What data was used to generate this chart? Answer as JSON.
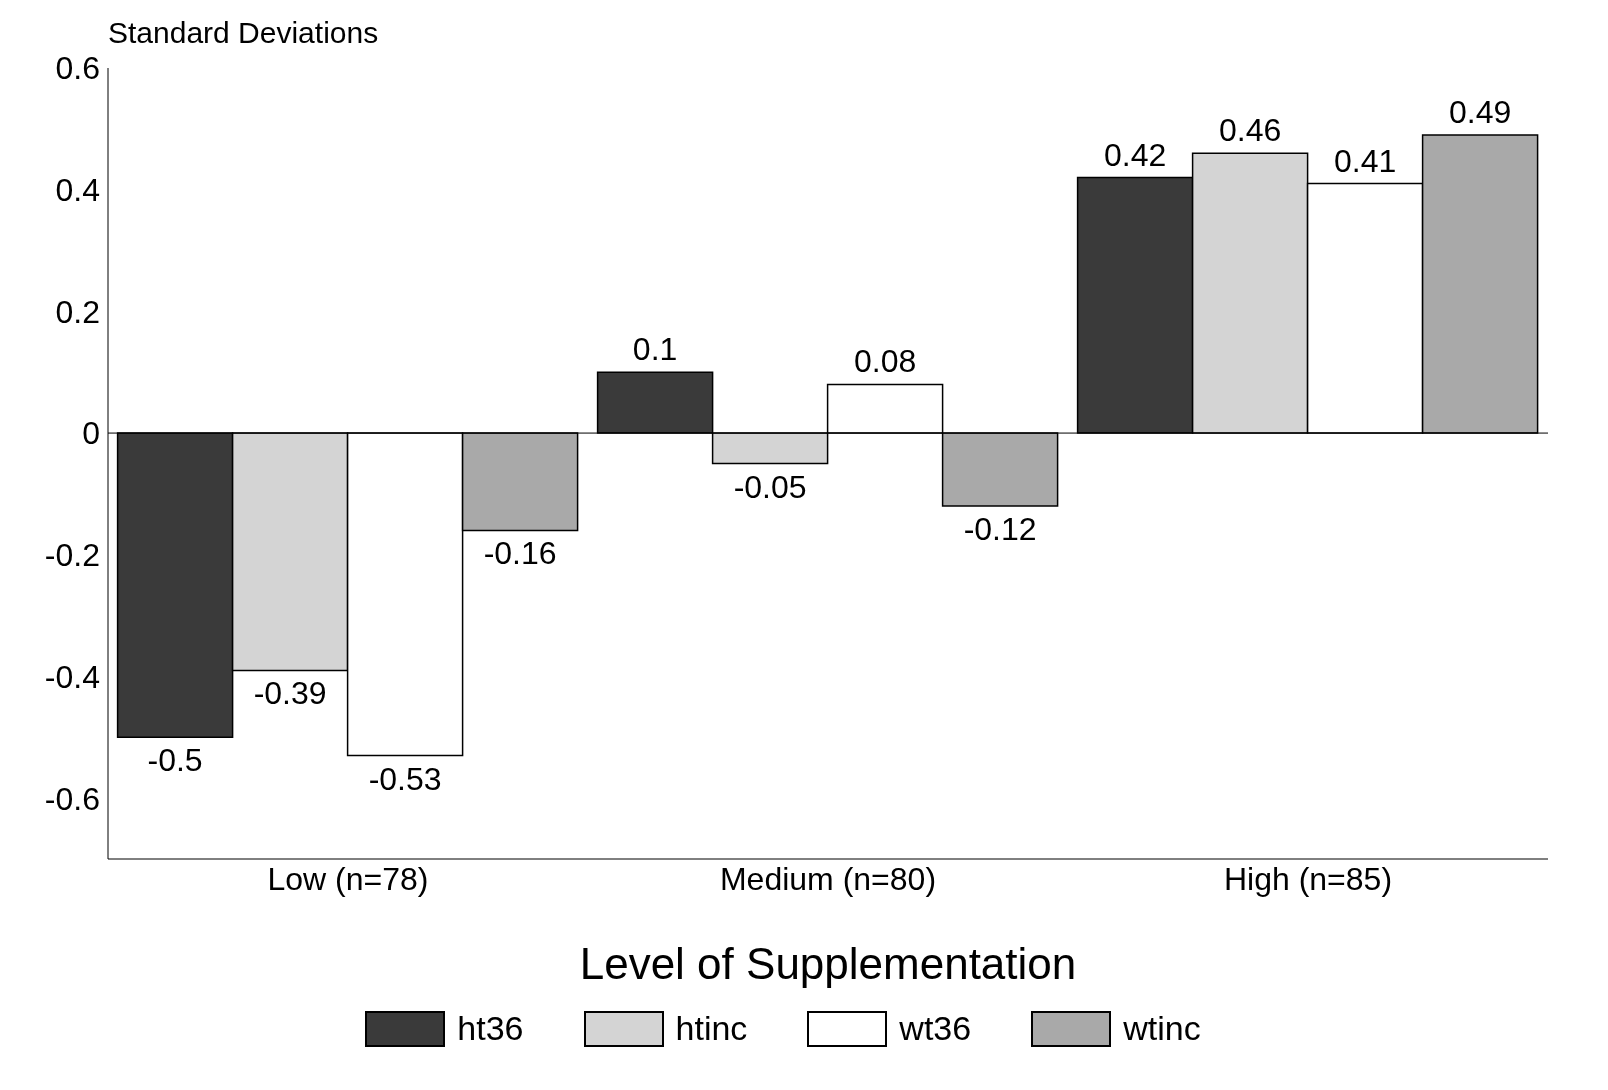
{
  "chart_data": {
    "type": "bar",
    "ylabel": "Standard Deviations",
    "xlabel": "Level of Supplementation",
    "categories": [
      "Low (n=78)",
      "Medium (n=80)",
      "High (n=85)"
    ],
    "series": [
      {
        "name": "ht36",
        "color": "#3a3a3a",
        "values": [
          -0.5,
          0.1,
          0.42
        ]
      },
      {
        "name": "htinc",
        "color": "#d4d4d4",
        "values": [
          -0.39,
          -0.05,
          0.46
        ]
      },
      {
        "name": "wt36",
        "color": "#ffffff",
        "values": [
          -0.53,
          0.08,
          0.41
        ]
      },
      {
        "name": "wtinc",
        "color": "#a9a9a9",
        "values": [
          -0.16,
          -0.12,
          0.49
        ]
      }
    ],
    "ylim": [
      -0.7,
      0.6
    ],
    "yticks": [
      -0.6,
      -0.4,
      -0.2,
      0,
      0.2,
      0.4,
      0.6
    ],
    "data_labels": true,
    "legend": "bottom",
    "ref_lines": [
      {
        "axis": "y",
        "value": 0,
        "color": "#000000"
      }
    ]
  }
}
